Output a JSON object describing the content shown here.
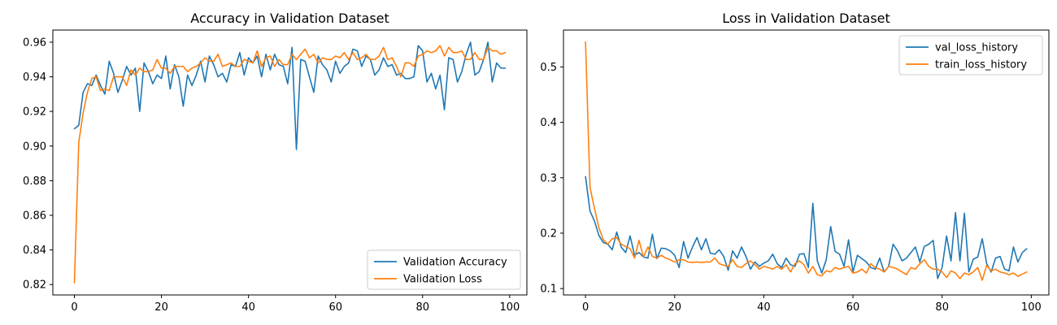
{
  "chart_data": [
    {
      "type": "line",
      "title": "Accuracy in Validation Dataset",
      "xlabel": "",
      "ylabel": "",
      "xlim": [
        -4.95,
        103.95
      ],
      "ylim": [
        0.814,
        0.967
      ],
      "x_ticks": [
        0,
        20,
        40,
        60,
        80,
        100
      ],
      "y_ticks": [
        0.82,
        0.84,
        0.86,
        0.88,
        0.9,
        0.92,
        0.94,
        0.96
      ],
      "y_tick_labels": [
        "0.82",
        "0.84",
        "0.86",
        "0.88",
        "0.90",
        "0.92",
        "0.94",
        "0.96"
      ],
      "grid": false,
      "legend_position": "lower-right",
      "x": [
        0,
        1,
        2,
        3,
        4,
        5,
        6,
        7,
        8,
        9,
        10,
        11,
        12,
        13,
        14,
        15,
        16,
        17,
        18,
        19,
        20,
        21,
        22,
        23,
        24,
        25,
        26,
        27,
        28,
        29,
        30,
        31,
        32,
        33,
        34,
        35,
        36,
        37,
        38,
        39,
        40,
        41,
        42,
        43,
        44,
        45,
        46,
        47,
        48,
        49,
        50,
        51,
        52,
        53,
        54,
        55,
        56,
        57,
        58,
        59,
        60,
        61,
        62,
        63,
        64,
        65,
        66,
        67,
        68,
        69,
        70,
        71,
        72,
        73,
        74,
        75,
        76,
        77,
        78,
        79,
        80,
        81,
        82,
        83,
        84,
        85,
        86,
        87,
        88,
        89,
        90,
        91,
        92,
        93,
        94,
        95,
        96,
        97,
        98,
        99
      ],
      "series": [
        {
          "name": "Validation Accuracy",
          "color": "#1f77b4",
          "values": [
            0.91,
            0.912,
            0.931,
            0.936,
            0.935,
            0.941,
            0.935,
            0.93,
            0.949,
            0.942,
            0.931,
            0.938,
            0.946,
            0.941,
            0.945,
            0.92,
            0.948,
            0.943,
            0.936,
            0.941,
            0.939,
            0.952,
            0.933,
            0.947,
            0.94,
            0.923,
            0.941,
            0.935,
            0.941,
            0.949,
            0.937,
            0.952,
            0.947,
            0.94,
            0.942,
            0.937,
            0.947,
            0.946,
            0.954,
            0.941,
            0.951,
            0.948,
            0.952,
            0.94,
            0.953,
            0.944,
            0.953,
            0.947,
            0.946,
            0.936,
            0.957,
            0.898,
            0.95,
            0.949,
            0.94,
            0.931,
            0.952,
            0.947,
            0.944,
            0.937,
            0.949,
            0.942,
            0.946,
            0.948,
            0.956,
            0.955,
            0.946,
            0.952,
            0.95,
            0.941,
            0.944,
            0.951,
            0.946,
            0.947,
            0.941,
            0.942,
            0.939,
            0.939,
            0.94,
            0.958,
            0.955,
            0.937,
            0.942,
            0.933,
            0.941,
            0.921,
            0.951,
            0.95,
            0.937,
            0.943,
            0.953,
            0.96,
            0.941,
            0.943,
            0.95,
            0.96,
            0.937,
            0.948,
            0.945,
            0.945
          ]
        },
        {
          "name": "Validation Loss",
          "color": "#ff7f0e",
          "values": [
            0.821,
            0.902,
            0.919,
            0.931,
            0.939,
            0.94,
            0.932,
            0.933,
            0.932,
            0.94,
            0.94,
            0.94,
            0.935,
            0.944,
            0.941,
            0.945,
            0.943,
            0.943,
            0.944,
            0.95,
            0.945,
            0.945,
            0.942,
            0.946,
            0.946,
            0.946,
            0.943,
            0.945,
            0.946,
            0.948,
            0.951,
            0.949,
            0.949,
            0.953,
            0.946,
            0.947,
            0.948,
            0.946,
            0.946,
            0.95,
            0.949,
            0.948,
            0.955,
            0.946,
            0.951,
            0.952,
            0.946,
            0.95,
            0.947,
            0.947,
            0.953,
            0.95,
            0.953,
            0.956,
            0.951,
            0.953,
            0.948,
            0.951,
            0.95,
            0.95,
            0.952,
            0.951,
            0.954,
            0.95,
            0.954,
            0.95,
            0.951,
            0.953,
            0.95,
            0.95,
            0.952,
            0.957,
            0.95,
            0.951,
            0.946,
            0.94,
            0.948,
            0.948,
            0.946,
            0.952,
            0.953,
            0.955,
            0.954,
            0.955,
            0.958,
            0.952,
            0.957,
            0.954,
            0.954,
            0.955,
            0.95,
            0.95,
            0.954,
            0.95,
            0.95,
            0.957,
            0.955,
            0.955,
            0.953,
            0.954
          ]
        }
      ]
    },
    {
      "type": "line",
      "title": "Loss in Validation Dataset",
      "xlabel": "",
      "ylabel": "",
      "xlim": [
        -4.95,
        103.95
      ],
      "ylim": [
        0.0885,
        0.5665
      ],
      "x_ticks": [
        0,
        20,
        40,
        60,
        80,
        100
      ],
      "y_ticks": [
        0.1,
        0.2,
        0.3,
        0.4,
        0.5
      ],
      "y_tick_labels": [
        "0.1",
        "0.2",
        "0.3",
        "0.4",
        "0.5"
      ],
      "grid": false,
      "legend_position": "top-right",
      "x": [
        0,
        1,
        2,
        3,
        4,
        5,
        6,
        7,
        8,
        9,
        10,
        11,
        12,
        13,
        14,
        15,
        16,
        17,
        18,
        19,
        20,
        21,
        22,
        23,
        24,
        25,
        26,
        27,
        28,
        29,
        30,
        31,
        32,
        33,
        34,
        35,
        36,
        37,
        38,
        39,
        40,
        41,
        42,
        43,
        44,
        45,
        46,
        47,
        48,
        49,
        50,
        51,
        52,
        53,
        54,
        55,
        56,
        57,
        58,
        59,
        60,
        61,
        62,
        63,
        64,
        65,
        66,
        67,
        68,
        69,
        70,
        71,
        72,
        73,
        74,
        75,
        76,
        77,
        78,
        79,
        80,
        81,
        82,
        83,
        84,
        85,
        86,
        87,
        88,
        89,
        90,
        91,
        92,
        93,
        94,
        95,
        96,
        97,
        98,
        99
      ],
      "series": [
        {
          "name": "val_loss_history",
          "color": "#1f77b4",
          "values": [
            0.302,
            0.24,
            0.222,
            0.196,
            0.183,
            0.18,
            0.17,
            0.202,
            0.175,
            0.165,
            0.195,
            0.16,
            0.165,
            0.157,
            0.155,
            0.198,
            0.154,
            0.173,
            0.172,
            0.168,
            0.16,
            0.138,
            0.185,
            0.155,
            0.175,
            0.192,
            0.17,
            0.19,
            0.164,
            0.162,
            0.17,
            0.158,
            0.133,
            0.168,
            0.155,
            0.175,
            0.158,
            0.135,
            0.148,
            0.14,
            0.146,
            0.15,
            0.162,
            0.145,
            0.138,
            0.155,
            0.143,
            0.14,
            0.162,
            0.163,
            0.138,
            0.254,
            0.15,
            0.128,
            0.152,
            0.212,
            0.167,
            0.162,
            0.14,
            0.188,
            0.13,
            0.16,
            0.154,
            0.148,
            0.138,
            0.135,
            0.155,
            0.13,
            0.14,
            0.18,
            0.168,
            0.15,
            0.155,
            0.165,
            0.175,
            0.148,
            0.176,
            0.18,
            0.187,
            0.118,
            0.138,
            0.195,
            0.15,
            0.237,
            0.15,
            0.236,
            0.13,
            0.153,
            0.157,
            0.19,
            0.145,
            0.13,
            0.155,
            0.158,
            0.135,
            0.132,
            0.175,
            0.148,
            0.165,
            0.172
          ]
        },
        {
          "name": "train_loss_history",
          "color": "#ff7f0e",
          "values": [
            0.545,
            0.283,
            0.245,
            0.21,
            0.188,
            0.18,
            0.19,
            0.192,
            0.18,
            0.176,
            0.172,
            0.155,
            0.187,
            0.157,
            0.175,
            0.158,
            0.155,
            0.16,
            0.155,
            0.152,
            0.148,
            0.152,
            0.152,
            0.148,
            0.147,
            0.148,
            0.147,
            0.148,
            0.148,
            0.155,
            0.145,
            0.142,
            0.14,
            0.152,
            0.14,
            0.138,
            0.145,
            0.15,
            0.143,
            0.135,
            0.14,
            0.138,
            0.135,
            0.14,
            0.135,
            0.143,
            0.13,
            0.145,
            0.15,
            0.143,
            0.128,
            0.14,
            0.125,
            0.123,
            0.132,
            0.13,
            0.138,
            0.135,
            0.138,
            0.14,
            0.128,
            0.13,
            0.135,
            0.128,
            0.145,
            0.138,
            0.135,
            0.13,
            0.14,
            0.138,
            0.135,
            0.13,
            0.125,
            0.138,
            0.135,
            0.145,
            0.152,
            0.14,
            0.135,
            0.135,
            0.13,
            0.12,
            0.132,
            0.128,
            0.118,
            0.128,
            0.125,
            0.13,
            0.138,
            0.115,
            0.142,
            0.132,
            0.135,
            0.13,
            0.128,
            0.125,
            0.128,
            0.122,
            0.126,
            0.13
          ]
        }
      ]
    }
  ]
}
